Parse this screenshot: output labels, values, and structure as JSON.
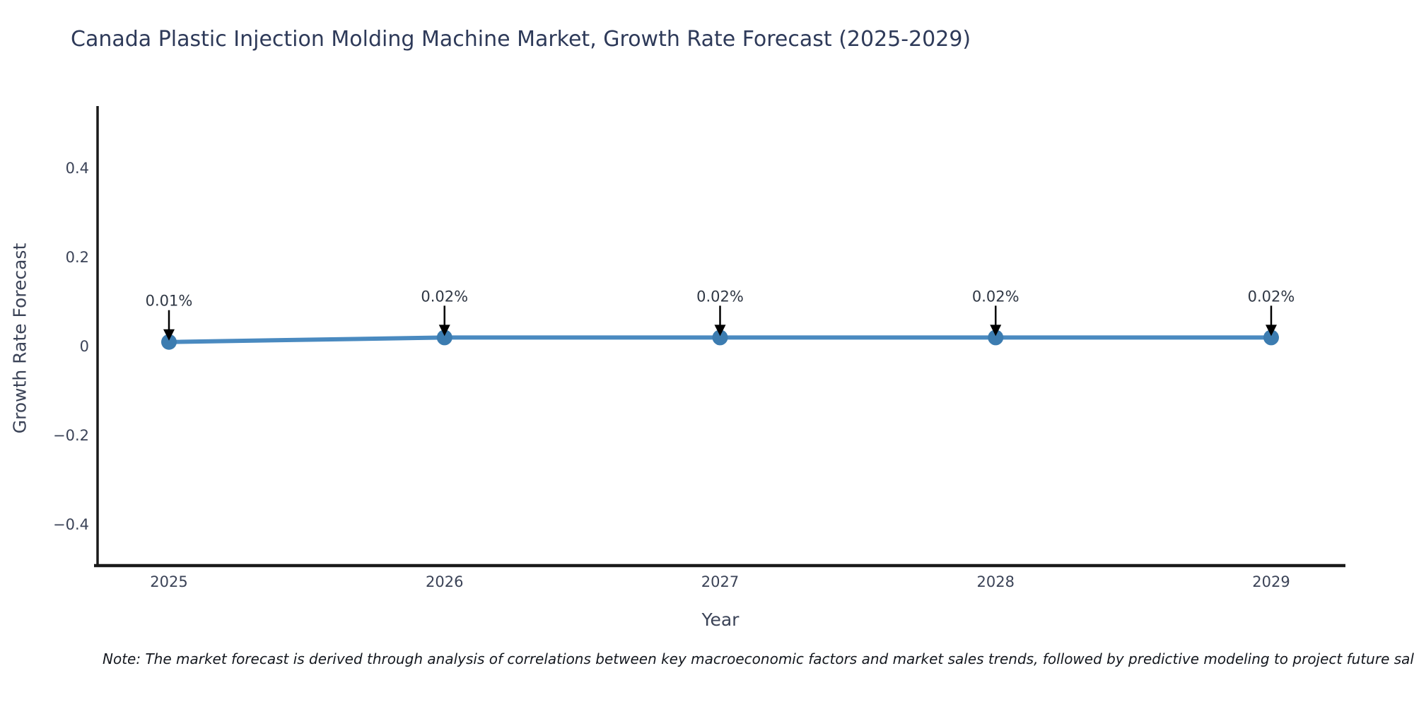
{
  "title": "Canada Plastic Injection Molding Machine Market, Growth Rate Forecast (2025-2029)",
  "note": "Note: The market forecast is derived through analysis of correlations between key macroeconomic factors and market sales trends, followed by predictive modeling to project future sales",
  "chart_data": {
    "type": "line",
    "title": "Canada Plastic Injection Molding Machine Market, Growth Rate Forecast (2025-2029)",
    "categories": [
      "2025",
      "2026",
      "2027",
      "2028",
      "2029"
    ],
    "values": [
      0.01,
      0.02,
      0.02,
      0.02,
      0.02
    ],
    "point_labels": [
      "0.01%",
      "0.02%",
      "0.02%",
      "0.02%",
      "0.02%"
    ],
    "xlabel": "Year",
    "ylabel": "Growth Rate Forecast",
    "yticks": [
      0.4,
      0.2,
      0,
      -0.2,
      -0.4
    ],
    "ytick_labels": [
      "0.4",
      "0.2",
      "0",
      "−0.2",
      "−0.4"
    ],
    "ylim": [
      -0.49,
      0.54
    ],
    "grid": false,
    "legend": "none",
    "line_color": "#4a8ac0",
    "marker_color": "#3c7cb0",
    "axis_color": "#1a1a1a",
    "tick_label_color": "#3b4357",
    "annotation_color": "#2f3744"
  }
}
